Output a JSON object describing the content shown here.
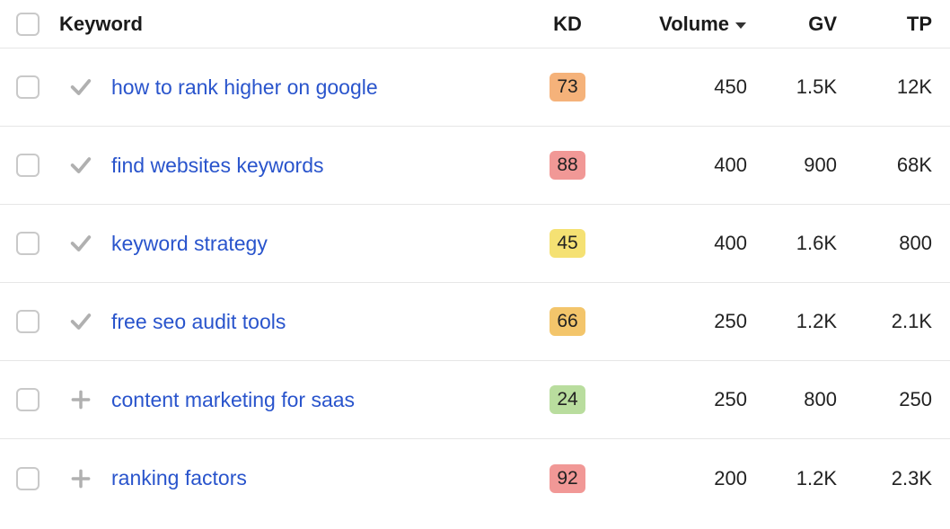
{
  "header": {
    "keyword": "Keyword",
    "kd": "KD",
    "volume": "Volume",
    "gv": "GV",
    "tp": "TP",
    "sorted_column": "volume",
    "sort_direction": "desc"
  },
  "colors": {
    "link": "#2954cc",
    "border": "#e6e6e6",
    "checkbox_border": "#c9c9c9",
    "status_icon": "#b0b0b0",
    "kd_orange": "#f5b27a",
    "kd_red": "#f19896",
    "kd_yellow": "#f5e173",
    "kd_amber": "#f3c56b",
    "kd_green": "#b9dd9e",
    "text": "#222222",
    "caret": "#333333"
  },
  "rows": [
    {
      "status": "check",
      "keyword": "how to rank higher on google",
      "kd": "73",
      "kd_color": "#f5b27a",
      "volume": "450",
      "gv": "1.5K",
      "tp": "12K"
    },
    {
      "status": "check",
      "keyword": "find websites keywords",
      "kd": "88",
      "kd_color": "#f19896",
      "volume": "400",
      "gv": "900",
      "tp": "68K"
    },
    {
      "status": "check",
      "keyword": "keyword strategy",
      "kd": "45",
      "kd_color": "#f5e173",
      "volume": "400",
      "gv": "1.6K",
      "tp": "800"
    },
    {
      "status": "check",
      "keyword": "free seo audit tools",
      "kd": "66",
      "kd_color": "#f3c56b",
      "volume": "250",
      "gv": "1.2K",
      "tp": "2.1K"
    },
    {
      "status": "plus",
      "keyword": "content marketing for saas",
      "kd": "24",
      "kd_color": "#b9dd9e",
      "volume": "250",
      "gv": "800",
      "tp": "250"
    },
    {
      "status": "plus",
      "keyword": "ranking factors",
      "kd": "92",
      "kd_color": "#f19896",
      "volume": "200",
      "gv": "1.2K",
      "tp": "2.3K"
    }
  ]
}
